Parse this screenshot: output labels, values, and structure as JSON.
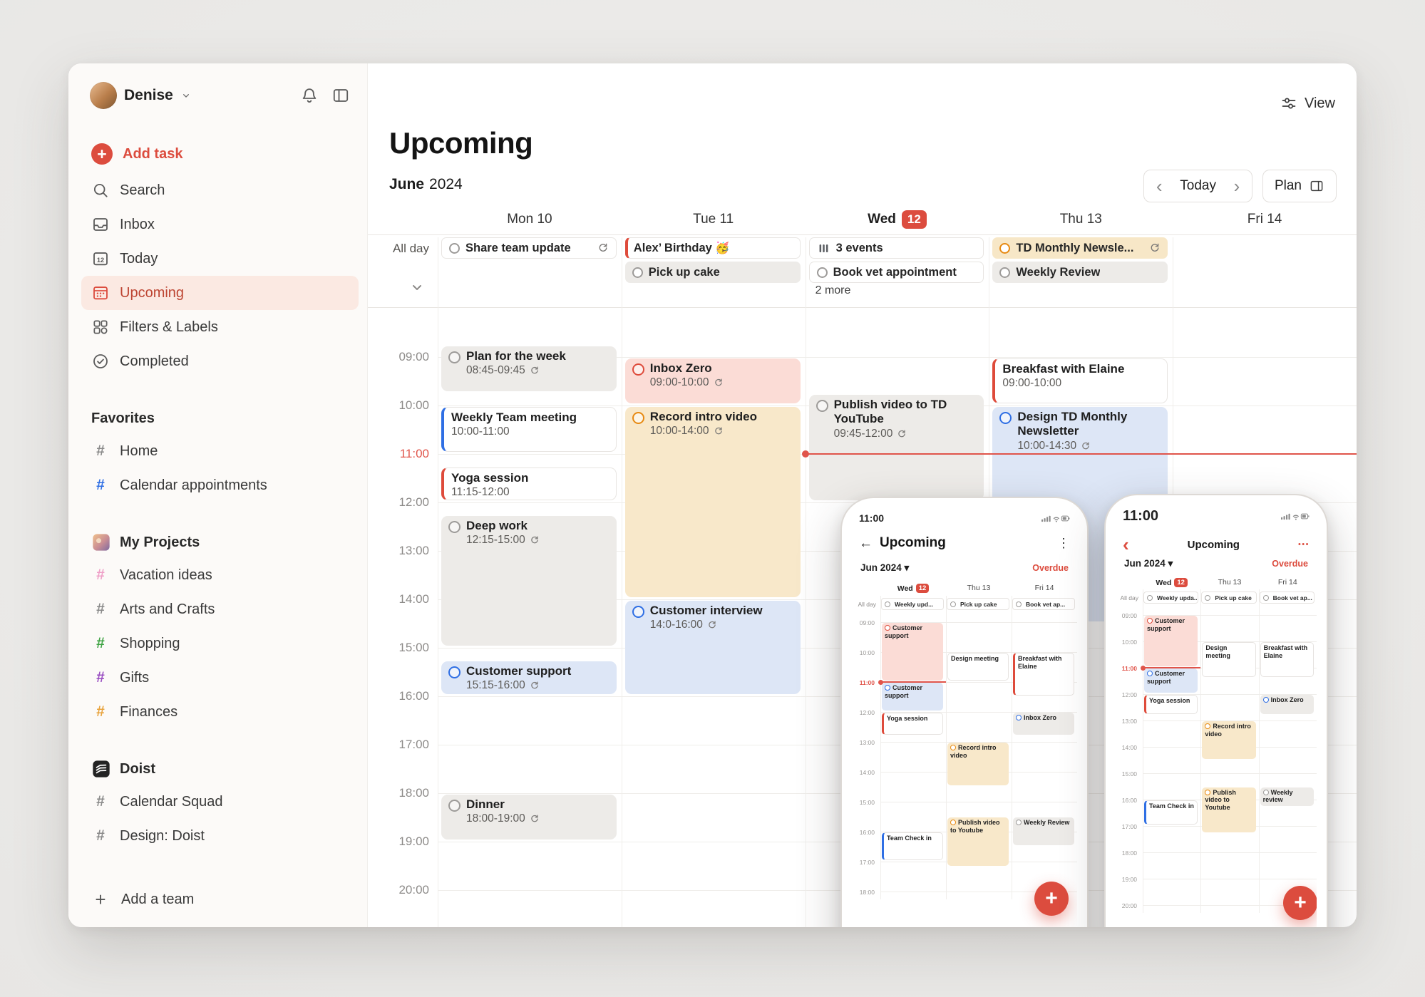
{
  "app": {
    "user_name": "Denise"
  },
  "colors": {
    "accent": "#dc4c3e",
    "event_gray_bg": "#edebe8",
    "event_red_bg": "#fbdcd6",
    "event_orange_bg": "#f8e8ca",
    "event_blue_bg": "#dde6f6",
    "bar_blue": "#2f6fe4",
    "bar_red": "#de4b3b",
    "circle_gray": "#9d9b99",
    "circle_red": "#de4b3b",
    "circle_orange": "#e78a12",
    "circle_blue": "#2f6fe4",
    "now_line": "#e0544a"
  },
  "sidebar": {
    "add_task_label": "Add task",
    "menu": [
      {
        "label": "Search",
        "icon": "search-icon"
      },
      {
        "label": "Inbox",
        "icon": "inbox-icon"
      },
      {
        "label": "Today",
        "icon": "today-icon"
      },
      {
        "label": "Upcoming",
        "icon": "upcoming-icon",
        "active": true
      },
      {
        "label": "Filters & Labels",
        "icon": "filters-icon"
      },
      {
        "label": "Completed",
        "icon": "completed-icon"
      }
    ],
    "sections": [
      {
        "header": "Favorites",
        "items": [
          {
            "label": "Home",
            "color": "#8a8a8a"
          },
          {
            "label": "Calendar appointments",
            "color": "#2f6fe4"
          }
        ]
      },
      {
        "header": "My Projects",
        "icon": "projects-thumbnail",
        "items": [
          {
            "label": "Vacation ideas",
            "color": "#efa0c8"
          },
          {
            "label": "Arts and Crafts",
            "color": "#8a8a8a"
          },
          {
            "label": "Shopping",
            "color": "#3fa344"
          },
          {
            "label": "Gifts",
            "color": "#9a4fc2"
          },
          {
            "label": "Finances",
            "color": "#e8a33d"
          }
        ]
      },
      {
        "header": "Doist",
        "icon": "doist-logo",
        "items": [
          {
            "label": "Calendar Squad",
            "color": "#8a8a8a"
          },
          {
            "label": "Design: Doist",
            "color": "#8a8a8a"
          }
        ]
      }
    ],
    "add_team_label": "Add a team"
  },
  "main": {
    "view_label": "View",
    "title": "Upcoming",
    "month": "June",
    "year": "2024",
    "today_label": "Today",
    "plan_label": "Plan",
    "all_day_label": "All day",
    "days": [
      {
        "name": "Mon",
        "num": "10"
      },
      {
        "name": "Tue",
        "num": "11"
      },
      {
        "name": "Wed",
        "num": "12",
        "today": true
      },
      {
        "name": "Thu",
        "num": "13"
      },
      {
        "name": "Fri",
        "num": "14"
      }
    ],
    "all_day_columns": [
      {
        "chips": [
          {
            "title": "Share team update",
            "style": "white",
            "circle": "gray",
            "recur": true
          }
        ]
      },
      {
        "chips": [
          {
            "title": "Alex’ Birthday 🥳",
            "style": "white-bar-red"
          },
          {
            "title": "Pick up cake",
            "style": "gray",
            "circle": "gray"
          }
        ]
      },
      {
        "chips": [
          {
            "title": "3 events",
            "style": "white",
            "icon": "bars-icon"
          },
          {
            "title": "Book vet appointment",
            "style": "white",
            "circle": "gray"
          }
        ],
        "more_label": "2 more"
      },
      {
        "chips": [
          {
            "title": "TD Monthly Newsle...",
            "style": "orange",
            "circle": "orange",
            "recur": true
          },
          {
            "title": "Weekly Review",
            "style": "gray",
            "circle": "gray"
          }
        ]
      },
      {
        "chips": []
      }
    ],
    "hours": [
      "09:00",
      "10:00",
      "11:00",
      "12:00",
      "13:00",
      "14:00",
      "15:00",
      "16:00",
      "17:00",
      "18:00",
      "19:00",
      "20:00"
    ],
    "now_hour": 11,
    "events": [
      {
        "day": 0,
        "title": "Plan for the week",
        "time": "08:45-09:45",
        "start": 8.75,
        "end": 9.75,
        "style": "gray",
        "circle": "gray",
        "recur": true
      },
      {
        "day": 0,
        "title": "Weekly Team meeting",
        "time": "10:00-11:00",
        "start": 10,
        "end": 11,
        "style": "white-bar-blue"
      },
      {
        "day": 0,
        "title": "Yoga session",
        "time": "11:15-12:00",
        "start": 11.25,
        "end": 12,
        "style": "white-bar-red"
      },
      {
        "day": 0,
        "title": "Deep work",
        "time": "12:15-15:00",
        "start": 12.25,
        "end": 15,
        "style": "gray",
        "circle": "gray",
        "recur": true
      },
      {
        "day": 0,
        "title": "Customer support",
        "time": "15:15-16:00",
        "start": 15.25,
        "end": 16,
        "style": "blue",
        "circle": "blue",
        "recur": true
      },
      {
        "day": 0,
        "title": "Dinner",
        "time": "18:00-19:00",
        "start": 18,
        "end": 19,
        "style": "gray",
        "circle": "gray",
        "recur": true
      },
      {
        "day": 1,
        "title": "Inbox Zero",
        "time": "09:00-10:00",
        "start": 9,
        "end": 10,
        "style": "red",
        "circle": "red",
        "recur": true
      },
      {
        "day": 1,
        "title": "Record intro video",
        "time": "10:00-14:00",
        "start": 10,
        "end": 14,
        "style": "orange",
        "circle": "orange",
        "recur": true
      },
      {
        "day": 1,
        "title": "Customer interview",
        "time": "14:0-16:00",
        "start": 14,
        "end": 16,
        "style": "blue",
        "circle": "blue",
        "recur": true
      },
      {
        "day": 2,
        "title": "Publish video to TD YouTube",
        "time": "09:45-12:00",
        "start": 9.75,
        "end": 12,
        "style": "gray",
        "circle": "gray",
        "recur": true
      },
      {
        "day": 3,
        "title": "Breakfast with Elaine",
        "time": "09:00-10:00",
        "start": 9,
        "end": 10,
        "style": "white-bar-red"
      },
      {
        "day": 3,
        "title": "Design TD Monthly Newsletter",
        "time": "10:00-14:30",
        "start": 10,
        "end": 14.5,
        "style": "blue",
        "circle": "blue",
        "recur": true
      }
    ]
  },
  "phones": [
    {
      "status_time": "11:00",
      "title": "Upcoming",
      "month_label": "Jun 2024",
      "overdue_label": "Overdue",
      "all_day_label": "All day",
      "days": [
        {
          "name": "Wed",
          "num": "12",
          "today": true
        },
        {
          "name": "Thu",
          "num": "13"
        },
        {
          "name": "Fri",
          "num": "14"
        }
      ],
      "all_day_chips": [
        "Weekly upd...",
        "Pick up cake",
        "Book vet ap..."
      ],
      "hours": [
        "09:00",
        "10:00",
        "11:00",
        "12:00",
        "13:00",
        "14:00",
        "15:00",
        "16:00",
        "17:00",
        "18:00"
      ],
      "now_hour": 11,
      "events": [
        {
          "day": 0,
          "start": 9,
          "end": 11,
          "title": "Customer support",
          "style": "red",
          "circle": "red"
        },
        {
          "day": 1,
          "start": 10,
          "end": 11,
          "title": "Design meeting",
          "style": "plain"
        },
        {
          "day": 2,
          "start": 10,
          "end": 11.5,
          "title": "Breakfast with Elaine",
          "style": "plain-bar-red"
        },
        {
          "day": 0,
          "start": 11,
          "end": 12,
          "title": "Customer support",
          "style": "blue",
          "circle": "blue"
        },
        {
          "day": 0,
          "start": 12,
          "end": 12.8,
          "title": "Yoga session",
          "style": "plain-bar-red"
        },
        {
          "day": 2,
          "start": 12,
          "end": 12.8,
          "title": "Inbox Zero",
          "style": "gray",
          "circle": "blue"
        },
        {
          "day": 1,
          "start": 13,
          "end": 14.5,
          "title": "Record intro video",
          "style": "orange",
          "circle": "orange"
        },
        {
          "day": 1,
          "start": 15.5,
          "end": 17.2,
          "title": "Publish video to Youtube",
          "style": "orange",
          "circle": "orange"
        },
        {
          "day": 2,
          "start": 15.5,
          "end": 16.5,
          "title": "Weekly Review",
          "style": "gray",
          "circle": "gray"
        },
        {
          "day": 0,
          "start": 16,
          "end": 17,
          "title": "Team Check in",
          "style": "plain-bar-blue"
        }
      ]
    },
    {
      "status_time": "11:00",
      "title": "Upcoming",
      "month_label": "Jun 2024",
      "overdue_label": "Overdue",
      "all_day_label": "All day",
      "days": [
        {
          "name": "Wed",
          "num": "12",
          "today": true
        },
        {
          "name": "Thu",
          "num": "13"
        },
        {
          "name": "Fri",
          "num": "14"
        }
      ],
      "all_day_chips": [
        "Weekly upda...",
        "Pick up cake",
        "Book vet ap..."
      ],
      "hours": [
        "09:00",
        "10:00",
        "11:00",
        "12:00",
        "13:00",
        "14:00",
        "15:00",
        "16:00",
        "17:00",
        "18:00",
        "19:00",
        "20:00"
      ],
      "now_hour": 11,
      "events": [
        {
          "day": 0,
          "start": 9,
          "end": 11,
          "title": "Customer support",
          "style": "red",
          "circle": "red"
        },
        {
          "day": 1,
          "start": 10,
          "end": 11.4,
          "title": "Design meeting",
          "style": "plain"
        },
        {
          "day": 2,
          "start": 10,
          "end": 11.4,
          "title": "Breakfast with Elaine",
          "style": "plain"
        },
        {
          "day": 0,
          "start": 11,
          "end": 12,
          "title": "Customer support",
          "style": "blue",
          "circle": "blue"
        },
        {
          "day": 0,
          "start": 12,
          "end": 12.8,
          "title": "Yoga session",
          "style": "plain-bar-red"
        },
        {
          "day": 2,
          "start": 12,
          "end": 12.8,
          "title": "Inbox Zero",
          "style": "gray",
          "circle": "blue"
        },
        {
          "day": 1,
          "start": 13,
          "end": 14.5,
          "title": "Record intro video",
          "style": "orange",
          "circle": "orange"
        },
        {
          "day": 1,
          "start": 15.5,
          "end": 17.3,
          "title": "Publish video to Youtube",
          "style": "orange",
          "circle": "orange"
        },
        {
          "day": 2,
          "start": 15.5,
          "end": 16.3,
          "title": "Weekly review",
          "style": "gray",
          "circle": "gray"
        },
        {
          "day": 0,
          "start": 16,
          "end": 17,
          "title": "Team Check in",
          "style": "plain-bar-blue"
        }
      ]
    }
  ]
}
